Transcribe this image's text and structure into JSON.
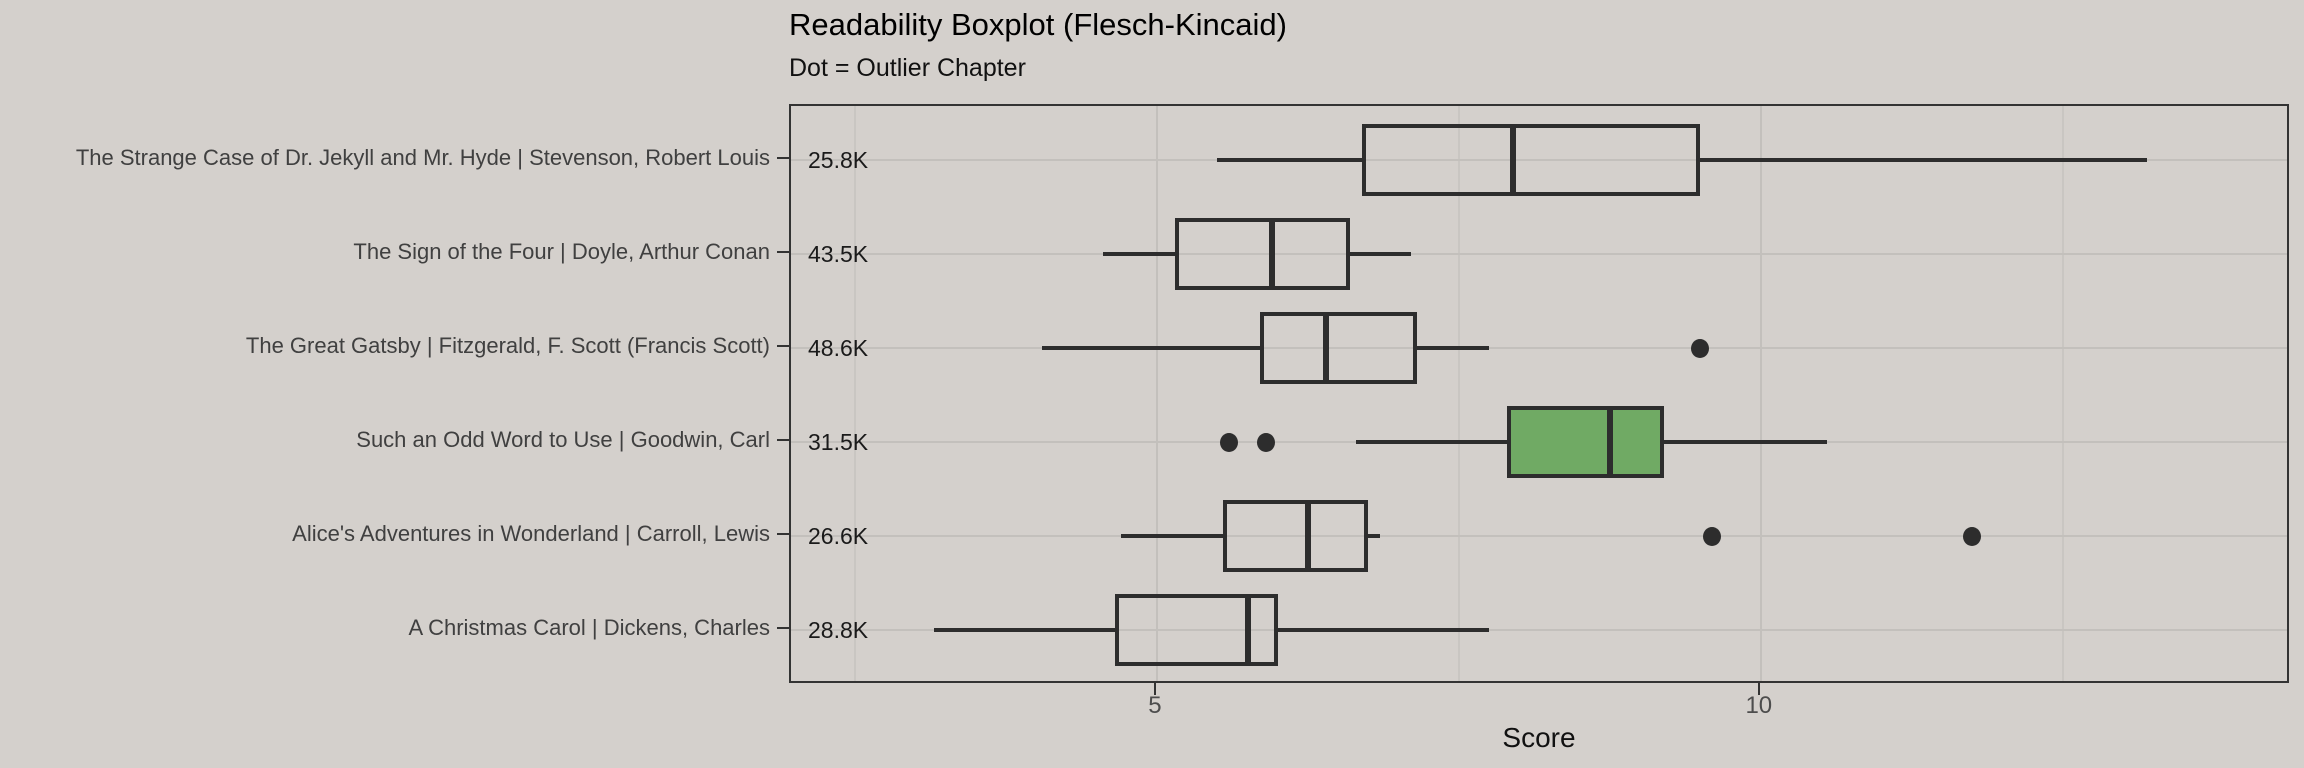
{
  "title": "Readability Boxplot (Flesch-Kincaid)",
  "subtitle": "Dot = Outlier Chapter",
  "colors": {
    "background": "#d4d0cc",
    "panel_border": "#333333",
    "box_stroke": "#2d2d2d",
    "highlight_fill": "#70aa64",
    "grid_major": "#c3c0bc",
    "grid_minor": "#c9c6c2",
    "axis_tick_text": "#4d4d4d",
    "y_label_text": "#404040",
    "annotation_text": "#1a1a1a"
  },
  "chart_data": {
    "type": "boxplot",
    "orientation": "horizontal",
    "title": "Readability Boxplot (Flesch-Kincaid)",
    "subtitle": "Dot = Outlier Chapter",
    "xlabel": "Score",
    "x_axis": {
      "range": [
        1.97,
        14.39
      ],
      "major_ticks": [
        5,
        10
      ],
      "major_tick_labels": [
        "5",
        "10"
      ],
      "minor_gridlines": [
        2.5,
        7.5,
        12.5
      ],
      "grid": true
    },
    "rows": [
      {
        "label": "The Strange Case of Dr. Jekyll and Mr. Hyde | Stevenson, Robert Louis",
        "word_count": "25.8K",
        "min": 5.5,
        "q1": 6.7,
        "median": 7.95,
        "q3": 9.5,
        "max": 13.2,
        "outliers": [],
        "highlight": false
      },
      {
        "label": "The Sign of the Four | Doyle, Arthur Conan",
        "word_count": "43.5K",
        "min": 4.55,
        "q1": 5.15,
        "median": 5.95,
        "q3": 6.6,
        "max": 7.1,
        "outliers": [],
        "highlight": false
      },
      {
        "label": "The Great Gatsby | Fitzgerald, F. Scott (Francis Scott)",
        "word_count": "48.6K",
        "min": 4.05,
        "q1": 5.85,
        "median": 6.4,
        "q3": 7.15,
        "max": 7.75,
        "outliers": [
          9.5
        ],
        "highlight": false
      },
      {
        "label": "Such an Odd Word to Use | Goodwin, Carl",
        "word_count": "31.5K",
        "min": 6.65,
        "q1": 7.9,
        "median": 8.75,
        "q3": 9.2,
        "max": 10.55,
        "outliers": [
          5.6,
          5.9
        ],
        "highlight": true
      },
      {
        "label": "Alice's Adventures in Wonderland | Carroll, Lewis",
        "word_count": "26.6K",
        "min": 4.7,
        "q1": 5.55,
        "median": 6.25,
        "q3": 6.75,
        "max": 6.85,
        "outliers": [
          9.6,
          11.75
        ],
        "highlight": false
      },
      {
        "label": "A Christmas Carol | Dickens, Charles",
        "word_count": "28.8K",
        "min": 3.15,
        "q1": 4.65,
        "median": 5.75,
        "q3": 6.0,
        "max": 7.75,
        "outliers": [],
        "highlight": false
      }
    ]
  }
}
